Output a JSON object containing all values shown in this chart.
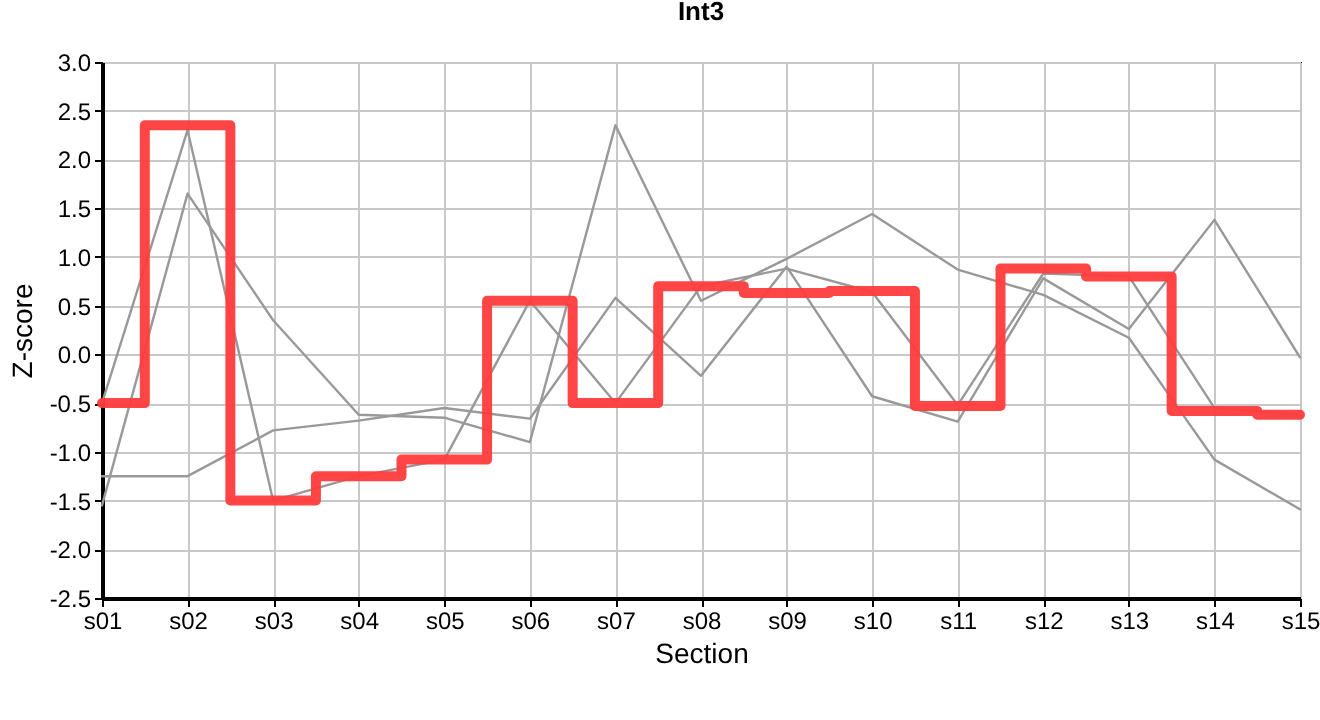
{
  "chart_data": {
    "type": "line",
    "title": "Int3",
    "xlabel": "Section",
    "ylabel": "Z-score",
    "categories": [
      "s01",
      "s02",
      "s03",
      "s04",
      "s05",
      "s06",
      "s07",
      "s08",
      "s09",
      "s10",
      "s11",
      "s12",
      "s13",
      "s14",
      "s15"
    ],
    "series": [
      {
        "color": "#999999",
        "values": [
          -0.5,
          2.3,
          -1.5,
          -1.25,
          -1.08,
          0.55,
          -0.5,
          0.7,
          0.88,
          0.64,
          -0.52,
          0.83,
          0.8,
          -0.55,
          -0.62
        ]
      },
      {
        "color": "#999999",
        "values": [
          -1.55,
          1.65,
          0.35,
          -0.62,
          -0.65,
          -0.9,
          2.35,
          0.55,
          0.98,
          1.44,
          0.87,
          0.61,
          0.17,
          -1.08,
          -1.59
        ]
      },
      {
        "color": "#999999",
        "values": [
          -1.25,
          -1.25,
          -0.78,
          -0.68,
          -0.55,
          -0.66,
          0.58,
          -0.22,
          0.9,
          -0.43,
          -0.69,
          0.78,
          0.26,
          1.38,
          -0.03
        ]
      },
      {
        "type": "step",
        "color": "#ff3b3b",
        "values": [
          -0.5,
          2.35,
          -1.5,
          -1.25,
          -1.08,
          0.55,
          -0.5,
          0.7,
          0.63,
          0.65,
          -0.53,
          0.88,
          0.8,
          -0.58,
          -0.62
        ]
      }
    ],
    "ylim": [
      -2.5,
      3.0
    ],
    "yticks": [
      {
        "value": -2.5,
        "label": "-2.5"
      },
      {
        "value": -2,
        "label": "-2.0"
      },
      {
        "value": -1.5,
        "label": "-1.5"
      },
      {
        "value": -1,
        "label": "-1.0"
      },
      {
        "value": -0.5,
        "label": "-0.5"
      },
      {
        "value": 0,
        "label": "0.0"
      },
      {
        "value": 0.5,
        "label": "0.5"
      },
      {
        "value": 1,
        "label": "1.0"
      },
      {
        "value": 1.5,
        "label": "1.5"
      },
      {
        "value": 2,
        "label": "2.0"
      },
      {
        "value": 2.5,
        "label": "2.5"
      },
      {
        "value": 3,
        "label": "3.0"
      }
    ],
    "grid": true,
    "marker": "none",
    "line_style": "solid"
  }
}
